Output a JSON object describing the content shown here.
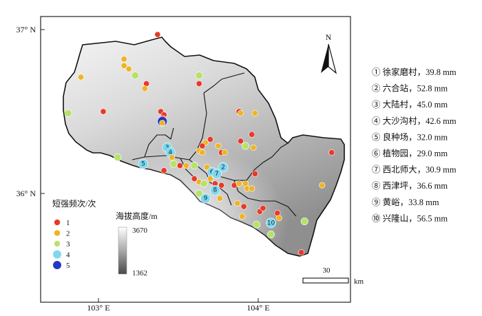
{
  "axes": {
    "y_ticks": [
      {
        "label": "37° N",
        "lat": 37.0
      },
      {
        "label": "36° N",
        "lat": 36.0
      }
    ],
    "x_ticks": [
      {
        "label": "103° E",
        "lon": 103.0
      },
      {
        "label": "104° E",
        "lon": 104.0
      }
    ]
  },
  "legend": {
    "title": "短强频次/次",
    "items": [
      {
        "label": "1",
        "color": "#e8392a"
      },
      {
        "label": "2",
        "color": "#f0b323"
      },
      {
        "label": "3",
        "color": "#b7e26a"
      },
      {
        "label": "4",
        "color": "#7fd8ef"
      },
      {
        "label": "5",
        "color": "#2438c8"
      }
    ]
  },
  "elevation": {
    "title": "海拔高度/m",
    "max_label": "3670",
    "min_label": "1362"
  },
  "north_arrow": {
    "label": "N"
  },
  "scale_bar": {
    "value_label": "30",
    "unit_label": "km"
  },
  "stations": [
    {
      "label": "① 徐家磨村，39.8 mm"
    },
    {
      "label": "② 六合站，52.8 mm"
    },
    {
      "label": "③ 大陆村，45.0 mm"
    },
    {
      "label": "④ 大沙沟村，42.6 mm"
    },
    {
      "label": "⑤ 良种场，32.0 mm"
    },
    {
      "label": "⑥ 植物园，29.0 mm"
    },
    {
      "label": "⑦ 西北师大，30.9 mm"
    },
    {
      "label": "⑧ 西津坪，36.6 mm"
    },
    {
      "label": "⑨ 黄峪，33.8 mm"
    },
    {
      "label": "⑩ 兴隆山，56.5 mm"
    }
  ],
  "points": [
    {
      "lon": 103.37,
      "lat": 36.97,
      "level": 1
    },
    {
      "lon": 103.16,
      "lat": 36.82,
      "level": 2
    },
    {
      "lon": 103.16,
      "lat": 36.78,
      "level": 2
    },
    {
      "lon": 103.19,
      "lat": 36.76,
      "level": 2
    },
    {
      "lon": 103.23,
      "lat": 36.72,
      "level": 3
    },
    {
      "lon": 102.89,
      "lat": 36.71,
      "level": 2
    },
    {
      "lon": 103.3,
      "lat": 36.67,
      "level": 1
    },
    {
      "lon": 103.29,
      "lat": 36.64,
      "level": 2
    },
    {
      "lon": 103.63,
      "lat": 36.72,
      "level": 3
    },
    {
      "lon": 103.63,
      "lat": 36.67,
      "level": 1
    },
    {
      "lon": 102.81,
      "lat": 36.49,
      "level": 3
    },
    {
      "lon": 103.03,
      "lat": 36.5,
      "level": 1
    },
    {
      "lon": 103.39,
      "lat": 36.5,
      "level": 1
    },
    {
      "lon": 103.41,
      "lat": 36.48,
      "level": 1
    },
    {
      "lon": 103.4,
      "lat": 36.46,
      "level": 1
    },
    {
      "lon": 103.4,
      "lat": 36.44,
      "level": 5,
      "num": "1"
    },
    {
      "lon": 103.4,
      "lat": 36.43,
      "level": 2
    },
    {
      "lon": 103.88,
      "lat": 36.5,
      "level": 1
    },
    {
      "lon": 103.89,
      "lat": 36.49,
      "level": 2
    },
    {
      "lon": 103.98,
      "lat": 36.49,
      "level": 2
    },
    {
      "lon": 103.96,
      "lat": 36.36,
      "level": 1
    },
    {
      "lon": 103.89,
      "lat": 36.32,
      "level": 1
    },
    {
      "lon": 103.92,
      "lat": 36.29,
      "level": 3
    },
    {
      "lon": 103.97,
      "lat": 36.28,
      "level": 2
    },
    {
      "lon": 103.7,
      "lat": 36.33,
      "level": 1
    },
    {
      "lon": 103.67,
      "lat": 36.31,
      "level": 2
    },
    {
      "lon": 103.65,
      "lat": 36.29,
      "level": 1
    },
    {
      "lon": 103.63,
      "lat": 36.26,
      "level": 2
    },
    {
      "lon": 103.65,
      "lat": 36.25,
      "level": 2
    },
    {
      "lon": 103.75,
      "lat": 36.29,
      "level": 2
    },
    {
      "lon": 103.77,
      "lat": 36.25,
      "level": 1
    },
    {
      "lon": 103.79,
      "lat": 36.25,
      "level": 2
    },
    {
      "lon": 103.78,
      "lat": 36.16,
      "level": 4,
      "num": "2"
    },
    {
      "lon": 103.43,
      "lat": 36.28,
      "level": 4,
      "num": "3"
    },
    {
      "lon": 103.45,
      "lat": 36.25,
      "level": 4,
      "num": "4"
    },
    {
      "lon": 103.46,
      "lat": 36.22,
      "level": 2
    },
    {
      "lon": 103.47,
      "lat": 36.18,
      "level": 3
    },
    {
      "lon": 103.12,
      "lat": 36.22,
      "level": 3
    },
    {
      "lon": 103.28,
      "lat": 36.18,
      "level": 4,
      "num": "5"
    },
    {
      "lon": 103.41,
      "lat": 36.14,
      "level": 1
    },
    {
      "lon": 103.51,
      "lat": 36.17,
      "level": 1
    },
    {
      "lon": 103.55,
      "lat": 36.17,
      "level": 2
    },
    {
      "lon": 103.6,
      "lat": 36.17,
      "level": 3
    },
    {
      "lon": 103.68,
      "lat": 36.16,
      "level": 2
    },
    {
      "lon": 103.71,
      "lat": 36.13,
      "level": 4,
      "num": "6"
    },
    {
      "lon": 103.74,
      "lat": 36.12,
      "level": 4,
      "num": "7"
    },
    {
      "lon": 103.6,
      "lat": 36.09,
      "level": 1
    },
    {
      "lon": 103.63,
      "lat": 36.07,
      "level": 2
    },
    {
      "lon": 103.66,
      "lat": 36.06,
      "level": 3
    },
    {
      "lon": 103.7,
      "lat": 36.09,
      "level": 2
    },
    {
      "lon": 103.73,
      "lat": 36.06,
      "level": 1
    },
    {
      "lon": 103.77,
      "lat": 36.05,
      "level": 1
    },
    {
      "lon": 103.73,
      "lat": 36.02,
      "level": 4,
      "num": "8"
    },
    {
      "lon": 103.63,
      "lat": 36.0,
      "level": 3
    },
    {
      "lon": 103.67,
      "lat": 35.97,
      "level": 4,
      "num": "9"
    },
    {
      "lon": 103.76,
      "lat": 35.97,
      "level": 2
    },
    {
      "lon": 103.85,
      "lat": 36.05,
      "level": 1
    },
    {
      "lon": 103.88,
      "lat": 36.06,
      "level": 2
    },
    {
      "lon": 103.92,
      "lat": 36.06,
      "level": 2
    },
    {
      "lon": 103.93,
      "lat": 36.03,
      "level": 2
    },
    {
      "lon": 103.96,
      "lat": 36.03,
      "level": 2
    },
    {
      "lon": 103.98,
      "lat": 36.12,
      "level": 1
    },
    {
      "lon": 103.87,
      "lat": 35.94,
      "level": 2
    },
    {
      "lon": 103.91,
      "lat": 35.92,
      "level": 1
    },
    {
      "lon": 103.9,
      "lat": 35.86,
      "level": 2
    },
    {
      "lon": 104.01,
      "lat": 35.89,
      "level": 1
    },
    {
      "lon": 104.03,
      "lat": 35.91,
      "level": 1
    },
    {
      "lon": 104.12,
      "lat": 35.88,
      "level": 1
    },
    {
      "lon": 104.13,
      "lat": 35.85,
      "level": 2
    },
    {
      "lon": 104.08,
      "lat": 35.82,
      "level": 4,
      "num": "10"
    },
    {
      "lon": 103.99,
      "lat": 35.81,
      "level": 3
    },
    {
      "lon": 104.08,
      "lat": 35.75,
      "level": 3
    },
    {
      "lon": 104.29,
      "lat": 35.83,
      "level": 3
    },
    {
      "lon": 104.4,
      "lat": 36.05,
      "level": 2
    },
    {
      "lon": 104.46,
      "lat": 36.25,
      "level": 1
    },
    {
      "lon": 104.27,
      "lat": 35.64,
      "level": 1
    }
  ]
}
